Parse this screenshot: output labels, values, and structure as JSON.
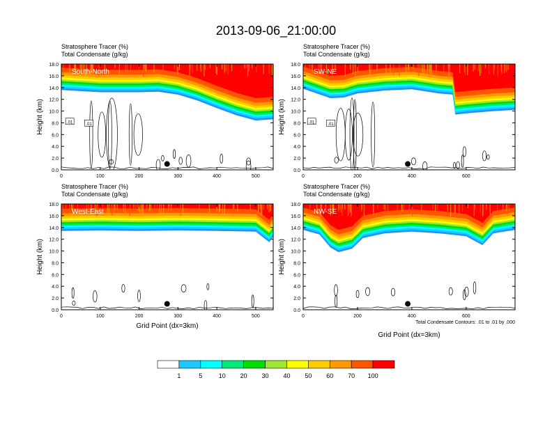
{
  "figure_title": "2013-09-06_21:00:00",
  "colors": {
    "levels": [
      "#ffffff",
      "#1e90ff",
      "#1ec8ff",
      "#00ffff",
      "#00e87a",
      "#00dd00",
      "#a0e632",
      "#ffff00",
      "#ffcc00",
      "#ff9900",
      "#ff5500",
      "#ff0000"
    ]
  },
  "chart_data": [
    {
      "type": "heatmap",
      "panel": "South-North",
      "title_line1": "Stratosphere Tracer   (%)",
      "title_line2": "Total Condensate   (g/kg)",
      "ylabel": "Height (km)",
      "xlabel": "",
      "xlim": [
        0,
        545
      ],
      "ylim": [
        0,
        18
      ],
      "x_ticks": [
        0,
        100,
        200,
        300,
        400,
        500
      ],
      "y_ticks": [
        "0.0",
        "2.0",
        "4.0",
        "6.0",
        "8.0",
        "10.0",
        "12.0",
        "14.0",
        "16.0",
        "18.0"
      ],
      "tropopause_km": [
        [
          0,
          13.6
        ],
        [
          100,
          13.2
        ],
        [
          200,
          13.2
        ],
        [
          250,
          13.3
        ],
        [
          300,
          12.8
        ],
        [
          350,
          11.8
        ],
        [
          400,
          10.5
        ],
        [
          450,
          9.3
        ],
        [
          500,
          8.4
        ],
        [
          545,
          8.6
        ]
      ],
      "dot": [
        272,
        1.0
      ],
      "contour_labels": [
        ".01",
        ".01"
      ]
    },
    {
      "type": "heatmap",
      "panel": "SW-NE",
      "title_line1": "Stratosphere Tracer   (%)",
      "title_line2": "Total Condensate   (g/kg)",
      "ylabel": "Height (km)",
      "xlabel": "",
      "xlim": [
        0,
        780
      ],
      "ylim": [
        0,
        18
      ],
      "x_ticks": [
        0,
        200,
        400,
        600
      ],
      "y_ticks": [
        "0.0",
        "2.0",
        "4.0",
        "6.0",
        "8.0",
        "10.0",
        "12.0",
        "14.0",
        "16.0",
        "18.0"
      ],
      "tropopause_km": [
        [
          0,
          13.8
        ],
        [
          100,
          12.2
        ],
        [
          150,
          12.3
        ],
        [
          200,
          13.0
        ],
        [
          300,
          13.5
        ],
        [
          400,
          13.7
        ],
        [
          500,
          13.0
        ],
        [
          550,
          12.8
        ],
        [
          560,
          9.4
        ],
        [
          600,
          9.6
        ],
        [
          700,
          10.0
        ],
        [
          780,
          10.2
        ]
      ],
      "dot": [
        385,
        1.0
      ],
      "contour_labels": [
        ".01",
        ".01"
      ]
    },
    {
      "type": "heatmap",
      "panel": "West-East",
      "title_line1": "Stratosphere Tracer   (%)",
      "title_line2": "Total Condensate   (g/kg)",
      "ylabel": "Height (km)",
      "xlabel": "Grid Point (dx=3km)",
      "xlim": [
        0,
        545
      ],
      "ylim": [
        0,
        18
      ],
      "x_ticks": [
        0,
        100,
        200,
        300,
        400,
        500
      ],
      "y_ticks": [
        "0.0",
        "2.0",
        "4.0",
        "6.0",
        "8.0",
        "10.0",
        "12.0",
        "14.0",
        "16.0",
        "18.0"
      ],
      "tropopause_km": [
        [
          0,
          13.4
        ],
        [
          100,
          13.5
        ],
        [
          200,
          13.4
        ],
        [
          300,
          13.5
        ],
        [
          400,
          13.4
        ],
        [
          500,
          13.3
        ],
        [
          535,
          11.5
        ],
        [
          545,
          12.5
        ]
      ],
      "dot": [
        272,
        1.0
      ],
      "contour_labels": []
    },
    {
      "type": "heatmap",
      "panel": "NW-SE",
      "title_line1": "Stratosphere Tracer   (%)",
      "title_line2": "Total Condensate   (g/kg)",
      "ylabel": "Height (km)",
      "xlabel": "Grid Point (dx=3km)",
      "xlim": [
        0,
        780
      ],
      "ylim": [
        0,
        18
      ],
      "x_ticks": [
        0,
        200,
        400,
        600
      ],
      "y_ticks": [
        "0.0",
        "2.0",
        "4.0",
        "6.0",
        "8.0",
        "10.0",
        "12.0",
        "14.0",
        "16.0",
        "18.0"
      ],
      "tropopause_km": [
        [
          0,
          13.6
        ],
        [
          60,
          12.8
        ],
        [
          100,
          10.6
        ],
        [
          130,
          9.8
        ],
        [
          180,
          10.4
        ],
        [
          220,
          12.2
        ],
        [
          300,
          13.0
        ],
        [
          400,
          13.3
        ],
        [
          500,
          13.0
        ],
        [
          600,
          12.5
        ],
        [
          660,
          11.0
        ],
        [
          700,
          13.0
        ],
        [
          780,
          13.6
        ]
      ],
      "dot": [
        385,
        1.0
      ],
      "contour_labels": [],
      "note": "Total Condensate Contours: .01 to .01 by .000"
    }
  ],
  "colorbar": {
    "labels": [
      "1",
      "5",
      "10",
      "20",
      "30",
      "40",
      "50",
      "60",
      "70",
      "100"
    ]
  }
}
